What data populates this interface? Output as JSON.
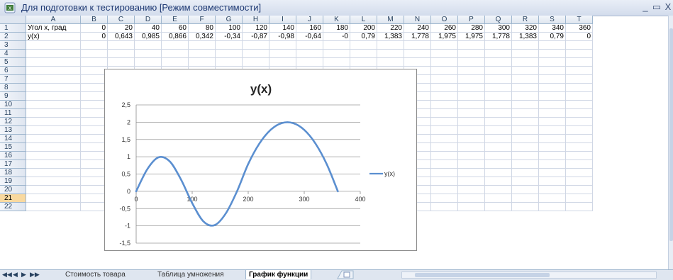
{
  "window": {
    "title": "Для подготовки к тестированию  [Режим совместимости]",
    "minimize_label": "_",
    "maximize_label": "▭",
    "close_label": "X"
  },
  "sheet": {
    "columns": [
      "A",
      "B",
      "C",
      "D",
      "E",
      "F",
      "G",
      "H",
      "I",
      "J",
      "K",
      "L",
      "M",
      "N",
      "O",
      "P",
      "Q",
      "R",
      "S",
      "T"
    ],
    "rows": [
      "1",
      "2",
      "3",
      "4",
      "5",
      "6",
      "7",
      "8",
      "9",
      "10",
      "11",
      "12",
      "13",
      "14",
      "15",
      "16",
      "17",
      "18",
      "19",
      "20",
      "21",
      "22"
    ],
    "selected_row": "21",
    "row1": [
      "Угол x, град",
      "0",
      "20",
      "40",
      "60",
      "80",
      "100",
      "120",
      "140",
      "160",
      "180",
      "200",
      "220",
      "240",
      "260",
      "280",
      "300",
      "320",
      "340",
      "360"
    ],
    "row2": [
      "y(x)",
      "0",
      "0,643",
      "0,985",
      "0,866",
      "0,342",
      "-0,34",
      "-0,87",
      "-0,98",
      "-0,64",
      "-0",
      "0,79",
      "1,383",
      "1,778",
      "1,975",
      "1,975",
      "1,778",
      "1,383",
      "0,79",
      "0"
    ]
  },
  "chart_data": {
    "type": "line",
    "title": "y(x)",
    "xlim": [
      0,
      400
    ],
    "ylim": [
      -1.5,
      2.5
    ],
    "x_ticks": [
      "0",
      "100",
      "200",
      "300",
      "400"
    ],
    "y_ticks": [
      "2,5",
      "2",
      "1,5",
      "1",
      "0,5",
      "0",
      "-0,5",
      "-1",
      "-1,5"
    ],
    "grid": true,
    "legend": "right",
    "color": "#5b8fd0",
    "series": [
      {
        "name": "y(x)",
        "x": [
          0,
          20,
          40,
          60,
          80,
          100,
          120,
          140,
          160,
          180,
          200,
          220,
          240,
          260,
          280,
          300,
          320,
          340,
          360
        ],
        "values": [
          0,
          0.643,
          0.985,
          0.866,
          0.342,
          -0.34,
          -0.87,
          -0.98,
          -0.64,
          0,
          0.79,
          1.383,
          1.778,
          1.975,
          1.975,
          1.778,
          1.383,
          0.79,
          0
        ]
      }
    ]
  },
  "tabs": {
    "nav": [
      "◀◀",
      "◀",
      "▶",
      "▶▶"
    ],
    "items": [
      "Стоимость товара",
      "Таблица умножения",
      "График функции"
    ],
    "active": 2
  }
}
